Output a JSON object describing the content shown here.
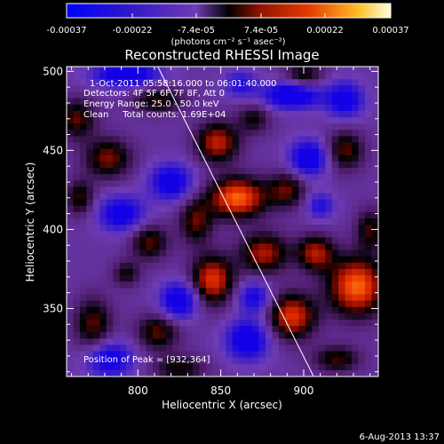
{
  "chart_data": {
    "type": "heatmap",
    "title": "Reconstructed RHESSI Image",
    "xlabel": "Heliocentric X (arcsec)",
    "ylabel": "Heliocentric Y (arcsec)",
    "xlim": [
      757,
      945
    ],
    "ylim": [
      307,
      503
    ],
    "x_ticks": [
      800,
      850,
      900
    ],
    "y_ticks": [
      350,
      400,
      450,
      500
    ],
    "colorbar": {
      "range": [
        -0.00037,
        0.00037
      ],
      "ticks": [
        "-0.00037",
        "-0.00022",
        "-7.4e-05",
        "7.4e-05",
        "0.00022",
        "0.00037"
      ],
      "label": "(photons cm⁻² s⁻¹ asec⁻²)"
    },
    "annotations": [
      "1-Oct-2011 05:58:16.000 to 06:01:40.000",
      "Detectors: 4F 5F 6F 7F 8F, Att 0",
      "Energy Range: 25.0 - 50.0 keV",
      "Clean     Total counts: 1.69E+04"
    ],
    "peak_label": "Position of Peak = [932,364]",
    "limb_line": {
      "x": [
        812,
        906
      ],
      "y": [
        503,
        307
      ]
    },
    "blobs": [
      {
        "x": 860,
        "y": 420,
        "amp": 1.0,
        "sx": 12,
        "sy": 9
      },
      {
        "x": 932,
        "y": 364,
        "amp": 1.0,
        "sx": 12,
        "sy": 13
      },
      {
        "x": 893,
        "y": 345,
        "amp": 0.85,
        "sx": 10,
        "sy": 10
      },
      {
        "x": 845,
        "y": 368,
        "amp": 0.85,
        "sx": 9,
        "sy": 11
      },
      {
        "x": 848,
        "y": 455,
        "amp": 0.75,
        "sx": 9,
        "sy": 9
      },
      {
        "x": 876,
        "y": 385,
        "amp": 0.7,
        "sx": 10,
        "sy": 9
      },
      {
        "x": 907,
        "y": 385,
        "amp": 0.7,
        "sx": 8,
        "sy": 8
      },
      {
        "x": 782,
        "y": 445,
        "amp": 0.6,
        "sx": 10,
        "sy": 9
      },
      {
        "x": 763,
        "y": 470,
        "amp": 0.55,
        "sx": 8,
        "sy": 9
      },
      {
        "x": 812,
        "y": 482,
        "amp": 0.5,
        "sx": 11,
        "sy": 6
      },
      {
        "x": 812,
        "y": 335,
        "amp": 0.55,
        "sx": 9,
        "sy": 8
      },
      {
        "x": 773,
        "y": 340,
        "amp": 0.55,
        "sx": 8,
        "sy": 12
      },
      {
        "x": 765,
        "y": 420,
        "amp": 0.5,
        "sx": 6,
        "sy": 8
      },
      {
        "x": 807,
        "y": 392,
        "amp": 0.55,
        "sx": 8,
        "sy": 8
      },
      {
        "x": 835,
        "y": 405,
        "amp": 0.55,
        "sx": 7,
        "sy": 10
      },
      {
        "x": 890,
        "y": 425,
        "amp": 0.55,
        "sx": 8,
        "sy": 8
      },
      {
        "x": 925,
        "y": 450,
        "amp": 0.55,
        "sx": 8,
        "sy": 9
      },
      {
        "x": 900,
        "y": 497,
        "amp": 0.5,
        "sx": 8,
        "sy": 6
      },
      {
        "x": 940,
        "y": 400,
        "amp": 0.5,
        "sx": 6,
        "sy": 9
      },
      {
        "x": 825,
        "y": 312,
        "amp": 0.45,
        "sx": 11,
        "sy": 6
      },
      {
        "x": 920,
        "y": 318,
        "amp": 0.5,
        "sx": 10,
        "sy": 6
      },
      {
        "x": 870,
        "y": 470,
        "amp": 0.4,
        "sx": 7,
        "sy": 7
      },
      {
        "x": 793,
        "y": 372,
        "amp": 0.4,
        "sx": 6,
        "sy": 6
      },
      {
        "x": 793,
        "y": 498,
        "amp": -0.8,
        "sx": 14,
        "sy": 6
      },
      {
        "x": 893,
        "y": 485,
        "amp": -0.9,
        "sx": 12,
        "sy": 6
      },
      {
        "x": 820,
        "y": 430,
        "amp": -0.75,
        "sx": 9,
        "sy": 8
      },
      {
        "x": 825,
        "y": 355,
        "amp": -0.8,
        "sx": 8,
        "sy": 8
      },
      {
        "x": 903,
        "y": 445,
        "amp": -0.8,
        "sx": 8,
        "sy": 8
      },
      {
        "x": 790,
        "y": 410,
        "amp": -0.7,
        "sx": 10,
        "sy": 8
      },
      {
        "x": 925,
        "y": 482,
        "amp": -0.7,
        "sx": 8,
        "sy": 8
      },
      {
        "x": 866,
        "y": 330,
        "amp": -0.8,
        "sx": 9,
        "sy": 9
      },
      {
        "x": 783,
        "y": 318,
        "amp": -0.7,
        "sx": 10,
        "sy": 8
      },
      {
        "x": 870,
        "y": 357,
        "amp": -0.6,
        "sx": 7,
        "sy": 7
      },
      {
        "x": 862,
        "y": 492,
        "amp": -0.5,
        "sx": 7,
        "sy": 6
      },
      {
        "x": 910,
        "y": 415,
        "amp": -0.5,
        "sx": 6,
        "sy": 6
      }
    ]
  },
  "footer": {
    "date": "6-Aug-2013 13:37"
  }
}
